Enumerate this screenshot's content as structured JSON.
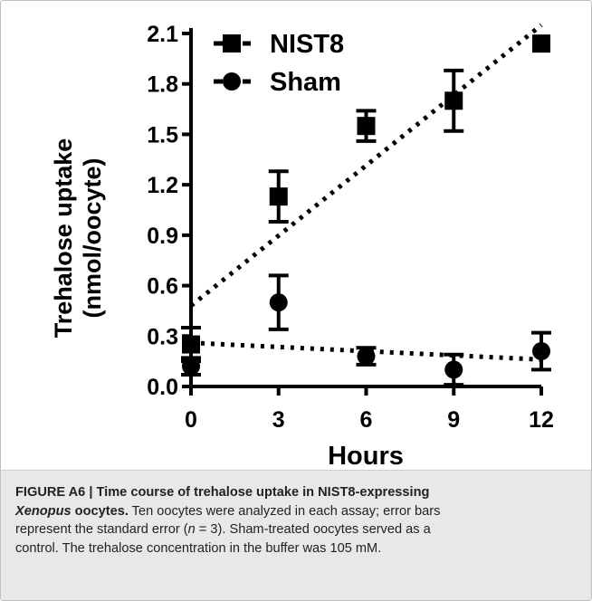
{
  "chart_data": {
    "type": "scatter",
    "xlabel": "Hours",
    "ylabel_line1": "Trehalose uptake",
    "ylabel_line2": "(nmol/oocyte)",
    "xlim": [
      0,
      12
    ],
    "ylim": [
      0,
      2.1
    ],
    "x_ticks": [
      "0",
      "3",
      "6",
      "9",
      "12"
    ],
    "y_ticks": [
      "0.0",
      "0.3",
      "0.6",
      "0.9",
      "1.2",
      "1.5",
      "1.8",
      "2.1"
    ],
    "grid": false,
    "legend_position": "top-left",
    "series": [
      {
        "name": "NIST8",
        "marker": "square",
        "x": [
          0,
          3,
          6,
          9,
          12
        ],
        "y": [
          0.25,
          1.13,
          1.55,
          1.7,
          2.04
        ],
        "error": [
          0.1,
          0.15,
          0.09,
          0.18,
          0.0
        ],
        "trendline": {
          "from": [
            0,
            0.48
          ],
          "to": [
            12,
            2.15
          ]
        }
      },
      {
        "name": "Sham",
        "marker": "circle",
        "x": [
          0,
          3,
          6,
          9,
          12
        ],
        "y": [
          0.12,
          0.5,
          0.18,
          0.1,
          0.21
        ],
        "error": [
          0.05,
          0.16,
          0.05,
          0.09,
          0.11
        ],
        "trendline": {
          "from": [
            0,
            0.26
          ],
          "to": [
            12,
            0.16
          ]
        }
      }
    ]
  },
  "caption": {
    "label": "FIGURE A6 | Time course of trehalose uptake in NIST8-expressing",
    "title_italic": "Xenopus",
    "title_rest": " oocytes.",
    "line1_rest": " Ten oocytes were analyzed in each assay; error bars",
    "line2_a": "represent the standard error (",
    "line2_n": "n",
    "line2_b": " = 3). Sham-treated oocytes served as a",
    "line3": "control. The trehalose concentration in the buffer was 105 mM."
  }
}
